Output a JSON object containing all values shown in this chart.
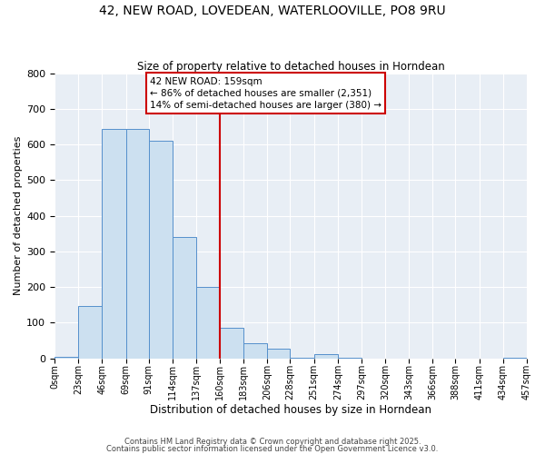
{
  "title": "42, NEW ROAD, LOVEDEAN, WATERLOOVILLE, PO8 9RU",
  "subtitle": "Size of property relative to detached houses in Horndean",
  "xlabel": "Distribution of detached houses by size in Horndean",
  "ylabel": "Number of detached properties",
  "bar_color": "#cce0f0",
  "bar_edge_color": "#5590cc",
  "fig_bg_color": "#ffffff",
  "axes_bg_color": "#e8eef5",
  "grid_color": "#ffffff",
  "bin_edges": [
    0,
    23,
    46,
    69,
    91,
    114,
    137,
    160,
    183,
    206,
    228,
    251,
    274,
    297,
    320,
    343,
    366,
    388,
    411,
    434,
    457
  ],
  "bin_labels": [
    "0sqm",
    "23sqm",
    "46sqm",
    "69sqm",
    "91sqm",
    "114sqm",
    "137sqm",
    "160sqm",
    "183sqm",
    "206sqm",
    "228sqm",
    "251sqm",
    "274sqm",
    "297sqm",
    "320sqm",
    "343sqm",
    "366sqm",
    "388sqm",
    "411sqm",
    "434sqm",
    "457sqm"
  ],
  "bar_heights": [
    5,
    148,
    645,
    645,
    610,
    340,
    200,
    85,
    42,
    27,
    2,
    12,
    2,
    0,
    0,
    0,
    0,
    0,
    0,
    3
  ],
  "vline_x": 160,
  "vline_color": "#cc0000",
  "annotation_title": "42 NEW ROAD: 159sqm",
  "annotation_line1": "← 86% of detached houses are smaller (2,351)",
  "annotation_line2": "14% of semi-detached houses are larger (380) →",
  "annotation_box_color": "#ffffff",
  "annotation_box_edge_color": "#cc0000",
  "ylim": [
    0,
    800
  ],
  "yticks": [
    0,
    100,
    200,
    300,
    400,
    500,
    600,
    700,
    800
  ],
  "footnote1": "Contains HM Land Registry data © Crown copyright and database right 2025.",
  "footnote2": "Contains public sector information licensed under the Open Government Licence v3.0."
}
